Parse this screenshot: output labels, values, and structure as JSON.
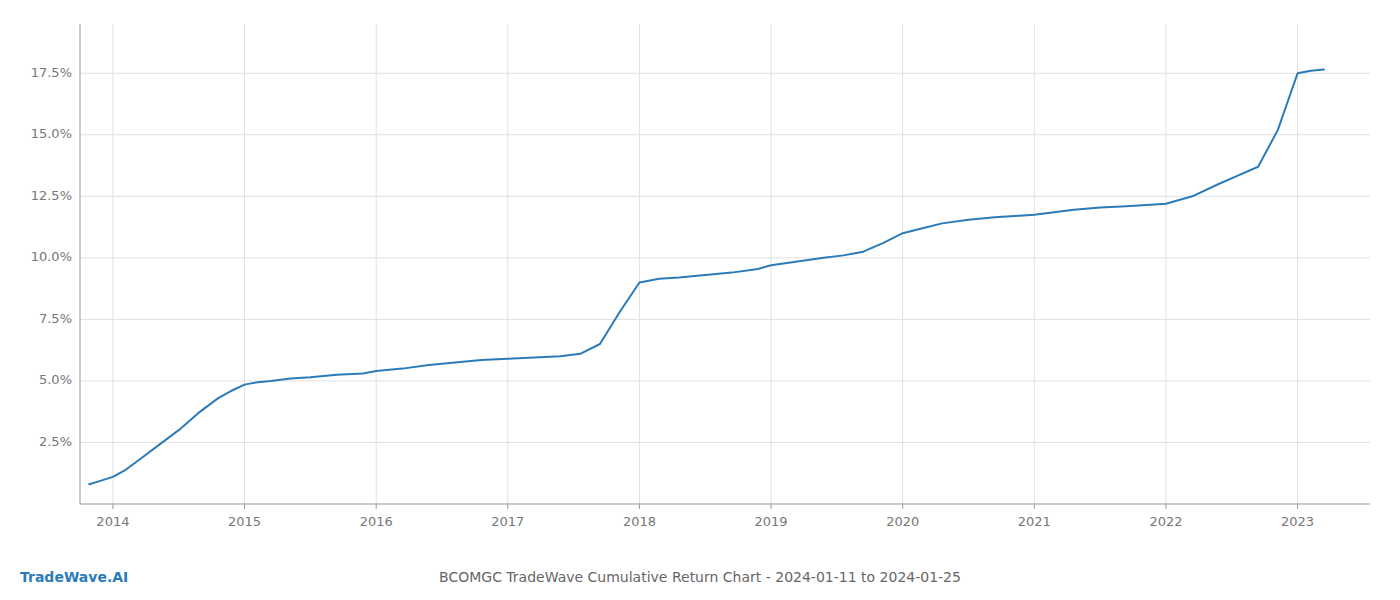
{
  "chart_data": {
    "type": "line",
    "title": "BCOMGC TradeWave Cumulative Return Chart - 2024-01-11 to 2024-01-25",
    "annotations": [
      "TradeWave.AI"
    ],
    "color": "#2b7bb9",
    "grid": true,
    "x": [
      2013.82,
      2013.88,
      2013.94,
      2014.0,
      2014.1,
      2014.2,
      2014.35,
      2014.5,
      2014.65,
      2014.8,
      2014.9,
      2015.0,
      2015.05,
      2015.1,
      2015.2,
      2015.35,
      2015.5,
      2015.7,
      2015.9,
      2016.0,
      2016.2,
      2016.4,
      2016.6,
      2016.8,
      2017.0,
      2017.2,
      2017.4,
      2017.55,
      2017.7,
      2017.85,
      2018.0,
      2018.15,
      2018.3,
      2018.5,
      2018.7,
      2018.9,
      2019.0,
      2019.2,
      2019.4,
      2019.55,
      2019.7,
      2019.85,
      2020.0,
      2020.15,
      2020.3,
      2020.5,
      2020.7,
      2020.85,
      2021.0,
      2021.15,
      2021.3,
      2021.5,
      2021.7,
      2021.85,
      2022.0,
      2022.2,
      2022.4,
      2022.55,
      2022.7,
      2022.85,
      2023.0,
      2023.1,
      2023.2
    ],
    "values": [
      0.8,
      0.9,
      1.0,
      1.1,
      1.4,
      1.8,
      2.4,
      3.0,
      3.7,
      4.3,
      4.6,
      4.85,
      4.9,
      4.95,
      5.0,
      5.1,
      5.15,
      5.25,
      5.3,
      5.4,
      5.5,
      5.65,
      5.75,
      5.85,
      5.9,
      5.95,
      6.0,
      6.1,
      6.5,
      7.8,
      9.0,
      9.15,
      9.2,
      9.3,
      9.4,
      9.55,
      9.7,
      9.85,
      10.0,
      10.1,
      10.25,
      10.6,
      11.0,
      11.2,
      11.4,
      11.55,
      11.65,
      11.7,
      11.75,
      11.85,
      11.95,
      12.05,
      12.1,
      12.15,
      12.2,
      12.5,
      13.0,
      13.35,
      13.7,
      15.2,
      17.5,
      17.6,
      17.65
    ],
    "xlim": [
      2013.75,
      2023.55
    ],
    "xticks": [
      2014,
      2015,
      2016,
      2017,
      2018,
      2019,
      2020,
      2021,
      2022,
      2023
    ],
    "ylim": [
      0.0,
      19.5
    ],
    "yticks": [
      {
        "value": 2.5,
        "label": "2.5%"
      },
      {
        "value": 5.0,
        "label": "5.0%"
      },
      {
        "value": 7.5,
        "label": "7.5%"
      },
      {
        "value": 10.0,
        "label": "10.0%"
      },
      {
        "value": 12.5,
        "label": "12.5%"
      },
      {
        "value": 15.0,
        "label": "15.0%"
      },
      {
        "value": 17.5,
        "label": "17.5%"
      }
    ]
  }
}
